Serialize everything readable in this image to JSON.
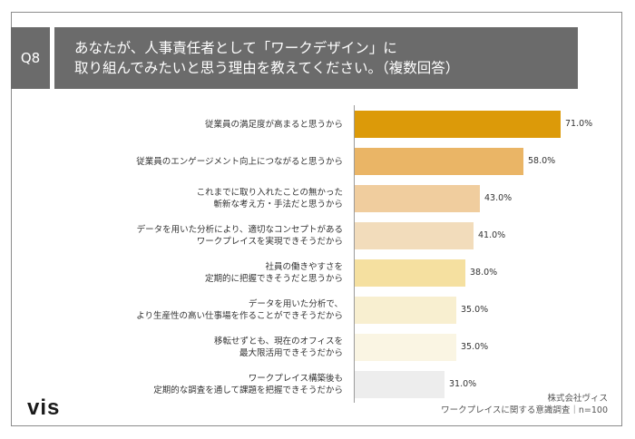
{
  "question": {
    "number": "Q8",
    "title_line1": "あなたが、人事責任者として「ワークデザイン」に",
    "title_line2": "取り組んでみたいと思う理由を教えてください。（複数回答）"
  },
  "chart_data": {
    "type": "bar",
    "orientation": "horizontal",
    "title": "あなたが、人事責任者として「ワークデザイン」に取り組んでみたいと思う理由を教えてください。（複数回答）",
    "unit": "%",
    "xlim": [
      0,
      100
    ],
    "categories": [
      [
        "従業員の満足度が高まると思うから"
      ],
      [
        "従業員のエンゲージメント向上につながると思うから"
      ],
      [
        "これまでに取り入れたことの無かった",
        "斬新な考え方・手法だと思うから"
      ],
      [
        "データを用いた分析により、適切なコンセプトがある",
        "ワークプレイスを実現できそうだから"
      ],
      [
        "社員の働きやすさを",
        "定期的に把握できそうだと思うから"
      ],
      [
        "データを用いた分析で、",
        "より生産性の高い仕事場を作ることができそうだから"
      ],
      [
        "移転せずとも、現在のオフィスを",
        "最大限活用できそうだから"
      ],
      [
        "ワークプレイス構築後も",
        "定期的な調査を通して課題を把握できそうだから"
      ]
    ],
    "values": [
      71.0,
      58.0,
      43.0,
      41.0,
      38.0,
      35.0,
      35.0,
      31.0
    ],
    "value_labels": [
      "71.0%",
      "58.0%",
      "43.0%",
      "41.0%",
      "38.0%",
      "35.0%",
      "35.0%",
      "31.0%"
    ],
    "colors": [
      "#dc9a09",
      "#eab566",
      "#f0cd9e",
      "#f2dcbb",
      "#f5e0a0",
      "#f8efd0",
      "#faf5e3",
      "#ededed"
    ]
  },
  "footer": {
    "company": "株式会社ヴィス",
    "survey": "ワークプレイスに関する意識調査｜n=100"
  },
  "logo": {
    "text": "vis"
  }
}
